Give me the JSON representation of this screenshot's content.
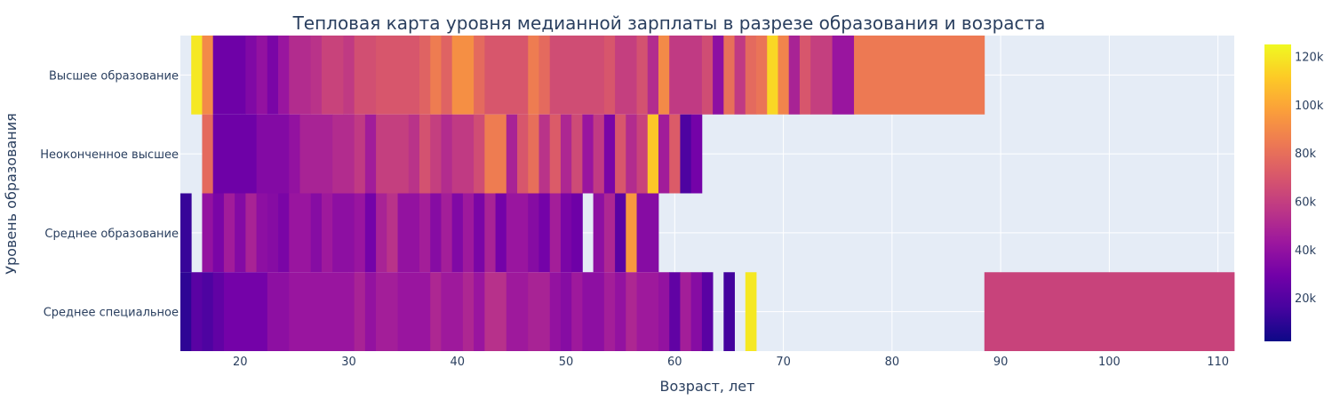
{
  "chart_data": {
    "type": "heatmap",
    "title": "Тепловая карта уровня медианной зарплаты в разрезе образования и возраста",
    "xlabel": "Возраст, лет",
    "ylabel": "Уровень образования",
    "x_ticks": [
      20,
      30,
      40,
      50,
      60,
      70,
      80,
      90,
      100,
      110
    ],
    "xlim": [
      14.5,
      111.5
    ],
    "categories": [
      "Высшее образование",
      "Неоконченное высшее",
      "Среднее образование",
      "Среднее специальное"
    ],
    "colorscale": [
      "#0d0887",
      "#46039f",
      "#7201a8",
      "#9c179e",
      "#bd3786",
      "#d8576b",
      "#ed7953",
      "#fb9f3a",
      "#fdca26",
      "#f0f921"
    ],
    "zlim": [
      2000,
      125000
    ],
    "colorbar_ticks": [
      {
        "value": 20000,
        "label": "20k"
      },
      {
        "value": 40000,
        "label": "40k"
      },
      {
        "value": 60000,
        "label": "60k"
      },
      {
        "value": 80000,
        "label": "80k"
      },
      {
        "value": 100000,
        "label": "100k"
      },
      {
        "value": 120000,
        "label": "120k"
      }
    ],
    "grid": true,
    "series": [
      {
        "category": "Высшее образование",
        "cells": [
          {
            "x0": 15.5,
            "x1": 16.5,
            "v": 120000
          },
          {
            "x0": 16.5,
            "x1": 17.5,
            "v": 90000
          },
          {
            "x0": 17.5,
            "x1": 20.5,
            "v": 28000
          },
          {
            "x0": 20.5,
            "x1": 21.5,
            "v": 34000
          },
          {
            "x0": 21.5,
            "x1": 22.5,
            "v": 40000
          },
          {
            "x0": 22.5,
            "x1": 23.5,
            "v": 32000
          },
          {
            "x0": 23.5,
            "x1": 24.5,
            "v": 42000
          },
          {
            "x0": 24.5,
            "x1": 26.5,
            "v": 52000
          },
          {
            "x0": 26.5,
            "x1": 27.5,
            "v": 55000
          },
          {
            "x0": 27.5,
            "x1": 29.5,
            "v": 62000
          },
          {
            "x0": 29.5,
            "x1": 30.5,
            "v": 58000
          },
          {
            "x0": 30.5,
            "x1": 32.5,
            "v": 67000
          },
          {
            "x0": 32.5,
            "x1": 36.5,
            "v": 70000
          },
          {
            "x0": 36.5,
            "x1": 37.5,
            "v": 75000
          },
          {
            "x0": 37.5,
            "x1": 38.5,
            "v": 85000
          },
          {
            "x0": 38.5,
            "x1": 39.5,
            "v": 75000
          },
          {
            "x0": 39.5,
            "x1": 41.5,
            "v": 92000
          },
          {
            "x0": 41.5,
            "x1": 42.5,
            "v": 78000
          },
          {
            "x0": 42.5,
            "x1": 46.5,
            "v": 70000
          },
          {
            "x0": 46.5,
            "x1": 47.5,
            "v": 85000
          },
          {
            "x0": 47.5,
            "x1": 48.5,
            "v": 78000
          },
          {
            "x0": 48.5,
            "x1": 53.5,
            "v": 66000
          },
          {
            "x0": 53.5,
            "x1": 54.5,
            "v": 70000
          },
          {
            "x0": 54.5,
            "x1": 56.5,
            "v": 60000
          },
          {
            "x0": 56.5,
            "x1": 57.5,
            "v": 68000
          },
          {
            "x0": 57.5,
            "x1": 58.5,
            "v": 52000
          },
          {
            "x0": 58.5,
            "x1": 59.5,
            "v": 90000
          },
          {
            "x0": 59.5,
            "x1": 62.5,
            "v": 58000
          },
          {
            "x0": 62.5,
            "x1": 63.5,
            "v": 66000
          },
          {
            "x0": 63.5,
            "x1": 64.5,
            "v": 38000
          },
          {
            "x0": 64.5,
            "x1": 65.5,
            "v": 80000
          },
          {
            "x0": 65.5,
            "x1": 66.5,
            "v": 58000
          },
          {
            "x0": 66.5,
            "x1": 67.5,
            "v": 78000
          },
          {
            "x0": 67.5,
            "x1": 68.5,
            "v": 82000
          },
          {
            "x0": 68.5,
            "x1": 69.5,
            "v": 115000
          },
          {
            "x0": 69.5,
            "x1": 70.5,
            "v": 88000
          },
          {
            "x0": 70.5,
            "x1": 71.5,
            "v": 48000
          },
          {
            "x0": 71.5,
            "x1": 72.5,
            "v": 70000
          },
          {
            "x0": 72.5,
            "x1": 74.5,
            "v": 60000
          },
          {
            "x0": 74.5,
            "x1": 76.5,
            "v": 42000
          },
          {
            "x0": 76.5,
            "x1": 88.5,
            "v": 84000
          }
        ]
      },
      {
        "category": "Неоконченное высшее",
        "cells": [
          {
            "x0": 16.5,
            "x1": 17.5,
            "v": 78000
          },
          {
            "x0": 17.5,
            "x1": 21.5,
            "v": 28000
          },
          {
            "x0": 21.5,
            "x1": 24.5,
            "v": 35000
          },
          {
            "x0": 24.5,
            "x1": 25.5,
            "v": 40000
          },
          {
            "x0": 25.5,
            "x1": 28.5,
            "v": 48000
          },
          {
            "x0": 28.5,
            "x1": 30.5,
            "v": 52000
          },
          {
            "x0": 30.5,
            "x1": 31.5,
            "v": 58000
          },
          {
            "x0": 31.5,
            "x1": 32.5,
            "v": 45000
          },
          {
            "x0": 32.5,
            "x1": 35.5,
            "v": 60000
          },
          {
            "x0": 35.5,
            "x1": 36.5,
            "v": 55000
          },
          {
            "x0": 36.5,
            "x1": 37.5,
            "v": 68000
          },
          {
            "x0": 37.5,
            "x1": 38.5,
            "v": 60000
          },
          {
            "x0": 38.5,
            "x1": 39.5,
            "v": 52000
          },
          {
            "x0": 39.5,
            "x1": 41.5,
            "v": 58000
          },
          {
            "x0": 41.5,
            "x1": 42.5,
            "v": 66000
          },
          {
            "x0": 42.5,
            "x1": 44.5,
            "v": 85000
          },
          {
            "x0": 44.5,
            "x1": 45.5,
            "v": 48000
          },
          {
            "x0": 45.5,
            "x1": 46.5,
            "v": 70000
          },
          {
            "x0": 46.5,
            "x1": 47.5,
            "v": 80000
          },
          {
            "x0": 47.5,
            "x1": 48.5,
            "v": 55000
          },
          {
            "x0": 48.5,
            "x1": 49.5,
            "v": 72000
          },
          {
            "x0": 49.5,
            "x1": 50.5,
            "v": 50000
          },
          {
            "x0": 50.5,
            "x1": 51.5,
            "v": 65000
          },
          {
            "x0": 51.5,
            "x1": 52.5,
            "v": 42000
          },
          {
            "x0": 52.5,
            "x1": 53.5,
            "v": 58000
          },
          {
            "x0": 53.5,
            "x1": 54.5,
            "v": 32000
          },
          {
            "x0": 54.5,
            "x1": 55.5,
            "v": 70000
          },
          {
            "x0": 55.5,
            "x1": 56.5,
            "v": 52000
          },
          {
            "x0": 56.5,
            "x1": 57.5,
            "v": 62000
          },
          {
            "x0": 57.5,
            "x1": 58.5,
            "v": 110000
          },
          {
            "x0": 58.5,
            "x1": 59.5,
            "v": 45000
          },
          {
            "x0": 59.5,
            "x1": 60.5,
            "v": 72000
          },
          {
            "x0": 60.5,
            "x1": 61.5,
            "v": 18000
          },
          {
            "x0": 61.5,
            "x1": 62.5,
            "v": 30000
          }
        ]
      },
      {
        "category": "Среднее образование",
        "cells": [
          {
            "x0": 14.5,
            "x1": 15.5,
            "v": 12000
          },
          {
            "x0": 16.5,
            "x1": 17.5,
            "v": 40000
          },
          {
            "x0": 17.5,
            "x1": 18.5,
            "v": 32000
          },
          {
            "x0": 18.5,
            "x1": 19.5,
            "v": 45000
          },
          {
            "x0": 19.5,
            "x1": 20.5,
            "v": 35000
          },
          {
            "x0": 20.5,
            "x1": 21.5,
            "v": 48000
          },
          {
            "x0": 21.5,
            "x1": 22.5,
            "v": 38000
          },
          {
            "x0": 22.5,
            "x1": 23.5,
            "v": 36000
          },
          {
            "x0": 23.5,
            "x1": 24.5,
            "v": 32000
          },
          {
            "x0": 24.5,
            "x1": 26.5,
            "v": 42000
          },
          {
            "x0": 26.5,
            "x1": 27.5,
            "v": 36000
          },
          {
            "x0": 27.5,
            "x1": 28.5,
            "v": 44000
          },
          {
            "x0": 28.5,
            "x1": 30.5,
            "v": 38000
          },
          {
            "x0": 30.5,
            "x1": 31.5,
            "v": 42000
          },
          {
            "x0": 31.5,
            "x1": 32.5,
            "v": 30000
          },
          {
            "x0": 32.5,
            "x1": 33.5,
            "v": 48000
          },
          {
            "x0": 33.5,
            "x1": 34.5,
            "v": 55000
          },
          {
            "x0": 34.5,
            "x1": 36.5,
            "v": 40000
          },
          {
            "x0": 36.5,
            "x1": 37.5,
            "v": 46000
          },
          {
            "x0": 37.5,
            "x1": 38.5,
            "v": 36000
          },
          {
            "x0": 38.5,
            "x1": 39.5,
            "v": 46000
          },
          {
            "x0": 39.5,
            "x1": 40.5,
            "v": 34000
          },
          {
            "x0": 40.5,
            "x1": 41.5,
            "v": 44000
          },
          {
            "x0": 41.5,
            "x1": 42.5,
            "v": 32000
          },
          {
            "x0": 42.5,
            "x1": 43.5,
            "v": 48000
          },
          {
            "x0": 43.5,
            "x1": 44.5,
            "v": 30000
          },
          {
            "x0": 44.5,
            "x1": 46.5,
            "v": 42000
          },
          {
            "x0": 46.5,
            "x1": 47.5,
            "v": 36000
          },
          {
            "x0": 47.5,
            "x1": 48.5,
            "v": 30000
          },
          {
            "x0": 48.5,
            "x1": 49.5,
            "v": 46000
          },
          {
            "x0": 49.5,
            "x1": 50.5,
            "v": 32000
          },
          {
            "x0": 50.5,
            "x1": 51.5,
            "v": 28000
          },
          {
            "x0": 52.5,
            "x1": 53.5,
            "v": 38000
          },
          {
            "x0": 53.5,
            "x1": 54.5,
            "v": 50000
          },
          {
            "x0": 54.5,
            "x1": 55.5,
            "v": 22000
          },
          {
            "x0": 55.5,
            "x1": 56.5,
            "v": 95000
          },
          {
            "x0": 56.5,
            "x1": 58.5,
            "v": 36000
          }
        ]
      },
      {
        "category": "Среднее специальное",
        "cells": [
          {
            "x0": 14.5,
            "x1": 15.5,
            "v": 10000
          },
          {
            "x0": 15.5,
            "x1": 16.5,
            "v": 22000
          },
          {
            "x0": 16.5,
            "x1": 17.5,
            "v": 18000
          },
          {
            "x0": 17.5,
            "x1": 18.5,
            "v": 24000
          },
          {
            "x0": 18.5,
            "x1": 22.5,
            "v": 30000
          },
          {
            "x0": 22.5,
            "x1": 24.5,
            "v": 38000
          },
          {
            "x0": 24.5,
            "x1": 30.5,
            "v": 42000
          },
          {
            "x0": 30.5,
            "x1": 31.5,
            "v": 48000
          },
          {
            "x0": 31.5,
            "x1": 32.5,
            "v": 40000
          },
          {
            "x0": 32.5,
            "x1": 34.5,
            "v": 46000
          },
          {
            "x0": 34.5,
            "x1": 37.5,
            "v": 42000
          },
          {
            "x0": 37.5,
            "x1": 38.5,
            "v": 50000
          },
          {
            "x0": 38.5,
            "x1": 40.5,
            "v": 44000
          },
          {
            "x0": 40.5,
            "x1": 41.5,
            "v": 50000
          },
          {
            "x0": 41.5,
            "x1": 42.5,
            "v": 42000
          },
          {
            "x0": 42.5,
            "x1": 44.5,
            "v": 54000
          },
          {
            "x0": 44.5,
            "x1": 46.5,
            "v": 44000
          },
          {
            "x0": 46.5,
            "x1": 48.5,
            "v": 48000
          },
          {
            "x0": 48.5,
            "x1": 49.5,
            "v": 40000
          },
          {
            "x0": 49.5,
            "x1": 50.5,
            "v": 36000
          },
          {
            "x0": 50.5,
            "x1": 51.5,
            "v": 44000
          },
          {
            "x0": 51.5,
            "x1": 53.5,
            "v": 38000
          },
          {
            "x0": 53.5,
            "x1": 54.5,
            "v": 46000
          },
          {
            "x0": 54.5,
            "x1": 55.5,
            "v": 40000
          },
          {
            "x0": 55.5,
            "x1": 56.5,
            "v": 50000
          },
          {
            "x0": 56.5,
            "x1": 58.5,
            "v": 44000
          },
          {
            "x0": 58.5,
            "x1": 59.5,
            "v": 40000
          },
          {
            "x0": 59.5,
            "x1": 60.5,
            "v": 24000
          },
          {
            "x0": 60.5,
            "x1": 61.5,
            "v": 46000
          },
          {
            "x0": 61.5,
            "x1": 62.5,
            "v": 36000
          },
          {
            "x0": 62.5,
            "x1": 63.5,
            "v": 22000
          },
          {
            "x0": 64.5,
            "x1": 65.5,
            "v": 15000
          },
          {
            "x0": 66.5,
            "x1": 67.5,
            "v": 120000
          },
          {
            "x0": 88.5,
            "x1": 111.5,
            "v": 62000
          }
        ]
      }
    ]
  }
}
